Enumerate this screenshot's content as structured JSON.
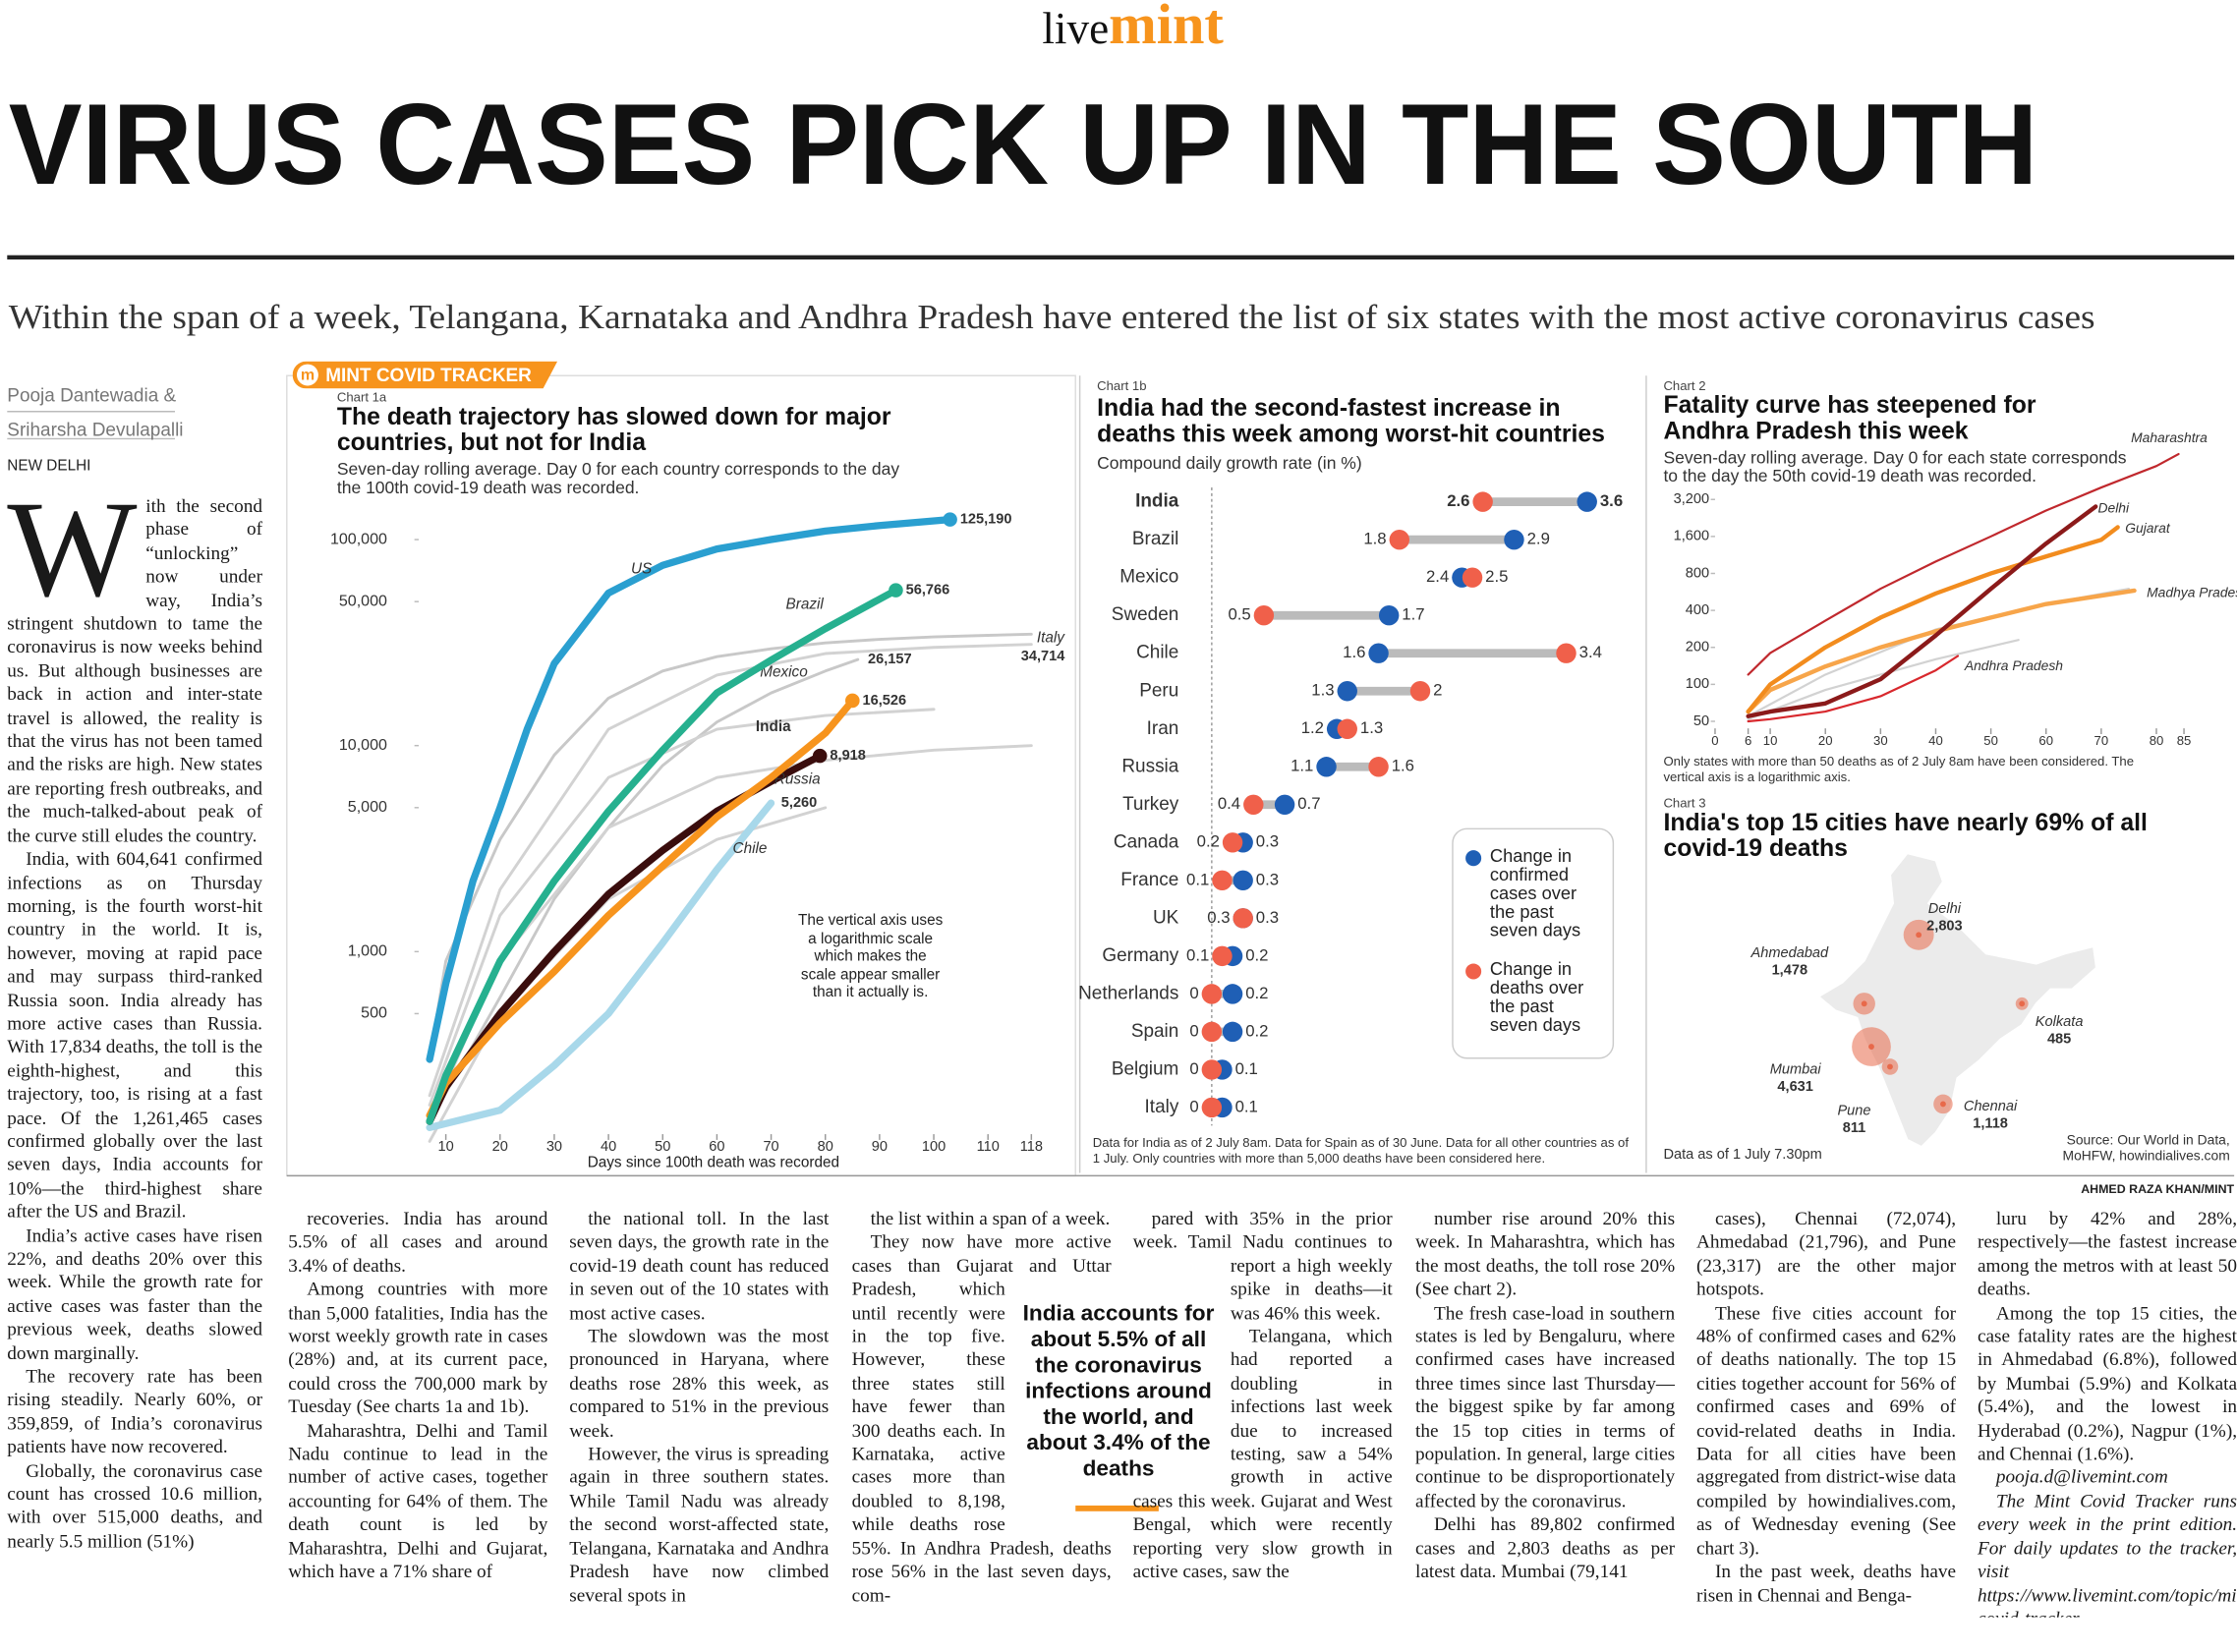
{
  "masthead": {
    "live": "live",
    "mint": "mint"
  },
  "headline": "VIRUS CASES PICK UP IN THE SOUTH",
  "subheadline": "Within the span of a week, Telangana, Karnataka and Andhra Pradesh have entered the list of six states with the most active coronavirus cases",
  "byline": {
    "authors": [
      "Pooja Dantewadia &",
      "Sriharsha Devulapalli"
    ],
    "dateline": "NEW DELHI"
  },
  "tracker_label": {
    "icon": "m",
    "text": "MINT COVID TRACKER"
  },
  "chart_data": [
    {
      "type": "line",
      "label": "Chart 1a",
      "title": "The death trajectory has slowed down for major countries, but not for India",
      "subtitle": "Seven-day rolling average. Day 0 for each country corresponds to the day the 100th covid-19 death was recorded.",
      "xlabel": "Days since 100th death was recorded",
      "annotation": "The vertical axis uses a logarithmic scale which makes the scale appear smaller than it actually is.",
      "log_y": true,
      "xlim": [
        5,
        119
      ],
      "ylim": [
        130,
        160000
      ],
      "xticks": [
        10,
        20,
        30,
        40,
        50,
        60,
        70,
        80,
        90,
        100,
        110,
        118
      ],
      "yticks": [
        500,
        {
          "value": 1000,
          "label": "1,000"
        },
        {
          "value": 5000,
          "label": "5,000"
        },
        {
          "value": 10000,
          "label": "10,000"
        },
        {
          "value": 50000,
          "label": "50,000"
        },
        {
          "value": 100000,
          "label": "100,000"
        }
      ],
      "series": [
        {
          "name": "Italy",
          "color": "#c8c8c8",
          "x": [
            7,
            10,
            20,
            30,
            40,
            50,
            60,
            70,
            80,
            90,
            100,
            110,
            118
          ],
          "values": [
            300,
            900,
            3500,
            9000,
            17000,
            23000,
            27000,
            29500,
            31500,
            32800,
            33700,
            34300,
            34714
          ],
          "value_labels": [
            null,
            null,
            null,
            null,
            null,
            null,
            null,
            null,
            null,
            null,
            null,
            null,
            "34,714"
          ]
        },
        {
          "name": "Mexico",
          "color": "#c8c8c8",
          "x": [
            7,
            20,
            30,
            40,
            50,
            60,
            70,
            80,
            86
          ],
          "values": [
            150,
            600,
            1800,
            4000,
            8000,
            13000,
            18000,
            23000,
            26157
          ],
          "value_labels": [
            null,
            null,
            null,
            null,
            null,
            null,
            null,
            null,
            "26,157"
          ]
        },
        {
          "color": "#d2d2d2",
          "x": [
            7,
            20,
            40,
            60,
            80,
            100,
            118
          ],
          "values": [
            200,
            2000,
            12000,
            22000,
            28000,
            30000,
            31000
          ]
        },
        {
          "color": "#d2d2d2",
          "x": [
            7,
            20,
            40,
            60,
            80,
            100
          ],
          "values": [
            180,
            1500,
            7000,
            12000,
            14000,
            15000
          ]
        },
        {
          "color": "#d2d2d2",
          "x": [
            7,
            20,
            40,
            60,
            80,
            100,
            118
          ],
          "values": [
            150,
            900,
            4000,
            7000,
            8500,
            9500,
            10000
          ]
        },
        {
          "color": "#d2d2d2",
          "x": [
            7,
            20,
            40,
            60,
            80
          ],
          "values": [
            120,
            500,
            1800,
            3500,
            5000
          ]
        },
        {
          "name": "Chile",
          "color": "#a8d8ea",
          "x": [
            7,
            20,
            30,
            40,
            50,
            60,
            70
          ],
          "values": [
            140,
            170,
            280,
            500,
            1100,
            2500,
            5260
          ],
          "value_labels": [
            null,
            null,
            null,
            null,
            null,
            null,
            "5,260"
          ]
        },
        {
          "name": "Russia",
          "color": "#3a0d0d",
          "marker": true,
          "x": [
            7,
            10,
            20,
            30,
            40,
            50,
            60,
            70,
            79
          ],
          "values": [
            150,
            220,
            500,
            1000,
            1900,
            3100,
            4800,
            6700,
            8918
          ],
          "value_labels": [
            null,
            null,
            null,
            null,
            null,
            null,
            null,
            null,
            "8,918"
          ]
        },
        {
          "name": "India",
          "color": "#f7941d",
          "marker": true,
          "bold": true,
          "x": [
            7,
            10,
            20,
            30,
            40,
            50,
            60,
            70,
            80,
            85
          ],
          "values": [
            160,
            230,
            450,
            800,
            1500,
            2600,
            4500,
            7000,
            11500,
            16526
          ],
          "value_labels": [
            null,
            null,
            null,
            null,
            null,
            null,
            null,
            null,
            null,
            "16,526"
          ]
        },
        {
          "name": "Brazil",
          "color": "#26b08f",
          "marker": true,
          "x": [
            7,
            10,
            20,
            30,
            40,
            50,
            60,
            70,
            80,
            93
          ],
          "values": [
            150,
            250,
            900,
            2200,
            4800,
            9500,
            18000,
            26000,
            37000,
            56766
          ],
          "value_labels": [
            null,
            null,
            null,
            null,
            null,
            null,
            null,
            null,
            null,
            "56,766"
          ]
        },
        {
          "name": "US",
          "color": "#2a9fd0",
          "marker": true,
          "x": [
            7,
            10,
            15,
            20,
            25,
            30,
            40,
            50,
            60,
            70,
            80,
            90,
            103
          ],
          "values": [
            300,
            700,
            2200,
            5000,
            12000,
            25000,
            55000,
            75000,
            90000,
            100000,
            110000,
            117000,
            125190
          ],
          "value_labels": [
            null,
            null,
            null,
            null,
            null,
            null,
            null,
            null,
            null,
            null,
            null,
            null,
            "125,190"
          ]
        }
      ]
    },
    {
      "type": "dumbbell",
      "label": "Chart 1b",
      "title": "India had the second-fastest increase in deaths this week among worst-hit countries",
      "subtitle": "Compound daily growth rate (in %)",
      "highlight": "India",
      "xlim": [
        0,
        3.7
      ],
      "categories": [
        "India",
        "Brazil",
        "Mexico",
        "Sweden",
        "Chile",
        "Peru",
        "Iran",
        "Russia",
        "Turkey",
        "Canada",
        "France",
        "UK",
        "Germany",
        "Netherlands",
        "Spain",
        "Belgium",
        "Italy"
      ],
      "series": [
        {
          "name": "Change in confirmed cases over the past seven days",
          "color": "#1f5fb5",
          "values": [
            3.6,
            2.9,
            2.4,
            1.7,
            1.6,
            1.3,
            1.2,
            1.1,
            0.7,
            0.3,
            0.3,
            0.3,
            0.2,
            0.2,
            0.2,
            0.1,
            0.1
          ]
        },
        {
          "name": "Change in deaths over the past seven days",
          "color": "#f0604a",
          "values": [
            2.6,
            1.8,
            2.5,
            0.5,
            3.4,
            2,
            1.3,
            1.6,
            0.4,
            0.2,
            0.1,
            0.3,
            0.1,
            0,
            0,
            0,
            0
          ]
        }
      ],
      "note": "Data for India as of 2 July 8am. Data for Spain as of 30 June. Data for all other countries as of 1 July.  Only countries with more than 5,000 deaths have been considered here."
    },
    {
      "type": "line",
      "label": "Chart 2",
      "title": "Fatality curve has steepened for Andhra Pradesh this week",
      "subtitle": "Seven-day rolling average. Day 0 for each state corresponds to the day the 50th covid-19 death was recorded.",
      "log_y": true,
      "xlim": [
        0,
        85
      ],
      "ylim": [
        45,
        8500
      ],
      "xticks": [
        0,
        6,
        10,
        20,
        30,
        40,
        50,
        60,
        70,
        80,
        85
      ],
      "yticks": [
        50,
        100,
        200,
        400,
        800,
        {
          "value": 1600,
          "label": "1,600"
        },
        {
          "value": 3200,
          "label": "3,200"
        }
      ],
      "series": [
        {
          "color": "#d2d2d2",
          "x": [
            6,
            20,
            40,
            60,
            75
          ],
          "values": [
            55,
            120,
            280,
            450,
            600
          ]
        },
        {
          "color": "#d2d2d2",
          "x": [
            6,
            20,
            40,
            55
          ],
          "values": [
            52,
            90,
            160,
            230
          ]
        },
        {
          "name": "Madhya Pradesh",
          "color": "#f7a54a",
          "x": [
            6,
            10,
            20,
            30,
            40,
            50,
            60,
            76
          ],
          "values": [
            60,
            90,
            140,
            200,
            270,
            350,
            450,
            580
          ]
        },
        {
          "name": "Gujarat",
          "color": "#f28c1e",
          "x": [
            6,
            10,
            20,
            30,
            40,
            50,
            60,
            70,
            73
          ],
          "values": [
            60,
            100,
            200,
            350,
            550,
            800,
            1100,
            1500,
            1900
          ]
        },
        {
          "name": "Andhra Pradesh",
          "color": "#d8282d",
          "x": [
            6,
            10,
            20,
            30,
            40,
            44
          ],
          "values": [
            50,
            52,
            60,
            80,
            130,
            170
          ]
        },
        {
          "name": "Delhi",
          "color": "#8b1a1a",
          "x": [
            6,
            10,
            20,
            30,
            40,
            50,
            60,
            69
          ],
          "values": [
            55,
            60,
            70,
            110,
            250,
            600,
            1400,
            2803
          ]
        },
        {
          "name": "Maharashtra",
          "color": "#c0282d",
          "x": [
            6,
            10,
            20,
            30,
            40,
            50,
            60,
            70,
            80,
            84
          ],
          "values": [
            120,
            180,
            330,
            600,
            1000,
            1600,
            2600,
            4000,
            6000,
            7500
          ]
        }
      ],
      "note": "Only states with more than 50 deaths as of 2 July 8am have been considered. The vertical axis is a logarithmic axis."
    },
    {
      "type": "map",
      "label": "Chart 3",
      "title": "India's top 15 cities have nearly 69% of all covid-19 deaths",
      "categories": [
        "Delhi",
        "Ahmedabad",
        "Mumbai",
        "Pune",
        "Kolkata",
        "Chennai"
      ],
      "values": [
        2803,
        1478,
        4631,
        811,
        485,
        1118
      ],
      "value_labels": [
        "2,803",
        "1,478",
        "4,631",
        "811",
        "485",
        "1,118"
      ],
      "color": "#e8694a",
      "note": "Data as of 1 July 7.30pm",
      "source": "Source: Our World in Data, MoHFW, howindialives.com"
    }
  ],
  "article": {
    "columns": [
      [
        "With the second phase of “unlocking” now under way, India’s stringent shutdown to tame the coronavirus is now weeks behind us. But although businesses are back in action and inter-state travel is allowed, the reality is that the virus has not been tamed and the risks are high. New states are reporting fresh outbreaks, and the much-talked-about peak of the curve still eludes the country.",
        "India, with 604,641 confirmed infections as on Thursday morning, is the fourth worst-hit country in the world. It is, however, moving at rapid pace and may surpass third-ranked Russia soon. India already has more active cases than Russia. With 17,834 deaths, the toll is the eighth-highest, and this trajectory, too, is rising at a fast pace. Of the 1,261,465 cases confirmed globally over the last seven days, India accounts for 10%—the third-highest share after the US and Brazil.",
        "India’s active cases have risen 22%, and deaths 20% over this week. While the growth rate for active cases was faster than the previous week, deaths slowed down marginally.",
        "The recovery rate has been rising steadily. Nearly 60%, or 359,859, of India’s coronavirus patients have now recovered.",
        "Globally, the coronavirus case count has crossed 10.6 million, with over 515,000 deaths, and nearly 5.5 million (51%)"
      ],
      [
        "recoveries. India has around 5.5% of all cases and around 3.4% of deaths.",
        "Among countries with more than 5,000 fatalities, India has the worst weekly growth rate in cases (28%) and, at its current pace, could cross the 700,000 mark by Tuesday (See charts 1a and 1b).",
        "Maharashtra, Delhi and Tamil Nadu continue to lead in the number of active cases, together accounting for 64% of them. The death count is led by Maharashtra, Delhi and Gujarat, which have a 71% share of"
      ],
      [
        "the national toll. In the last seven days, the growth rate in the covid-19 death count has reduced in seven out of the 10 states with most active cases.",
        "The slowdown was the most pronounced in Haryana, where deaths rose 28% this week, as compared to 51% in the previous week.",
        "However, the virus is spreading again in three southern states. While Tamil Nadu was already the second worst-affected state, Telangana, Karnataka and Andhra Pradesh have now climbed several spots in"
      ],
      [
        "the list within a span of a week.",
        "They now have more active cases than Gujarat and Uttar Pradesh, which until recently were in the top five. However, these three states still have fewer than 300 deaths each. In Karnataka, active cases more than doubled to 8,198, while deaths rose 55%. In Andhra Pradesh, deaths rose 56% in the last seven days, com-"
      ],
      [
        "pared with 35% in the prior week. Tamil Nadu continues to report a high weekly spike in deaths—it was 46% this week.",
        "Telangana, which had reported a doubling in infections last week due to increased testing, saw a 54% growth in active cases this week. Gujarat and West Bengal, which were recently reporting very slow growth in active cases, saw the"
      ],
      [
        "number rise around 20% this week. In Maharashtra, which has the most deaths, the toll rose 20% (See chart 2).",
        "The fresh case-load in southern states is led by Bengaluru, where confirmed cases have increased three times since last Thursday—the biggest spike by far among the 15 top cities in terms of population. In general, large cities continue to be disproportionately affected by the coronavirus.",
        "Delhi has 89,802 confirmed cases and 2,803 deaths as per latest data. Mumbai (79,141"
      ],
      [
        "cases), Chennai (72,074), Ahmedabad (21,796), and Pune (23,317) are the other major hotspots.",
        "These five cities account for 48% of confirmed cases and 62% of deaths nationally. The top 15 cities together account for 56% of confirmed cases and 69% of covid-related deaths in India. Data for all cities have been aggregated from district-wise data compiled by howindialives.com, as of Wednesday evening (See chart 3).",
        "In the past week, deaths have risen in Chennai and Benga-"
      ],
      [
        "luru by 42% and 28%, respectively—the fastest increase among the metros with at least 50 deaths.",
        "Among the top 15 cities, the case fatality rates are the highest in Ahmedabad (6.8%), followed by Mumbai (5.9%) and Kolkata (5.4%), and the lowest in Hyderabad (0.2%), Nagpur (1%), and Chennai (1.6%)."
      ]
    ],
    "signoff": {
      "email": "pooja.d@livemint.com",
      "note": "The Mint Covid Tracker runs every week in the print edition. For daily updates to the tracker, visit https://www.livemint.com/topic/mint-covid-tracker"
    }
  },
  "pullquote": "India accounts for about 5.5% of all the coronavirus infections around the world, and about 3.4% of the deaths",
  "credit": "AHMED RAZA KHAN/MINT"
}
